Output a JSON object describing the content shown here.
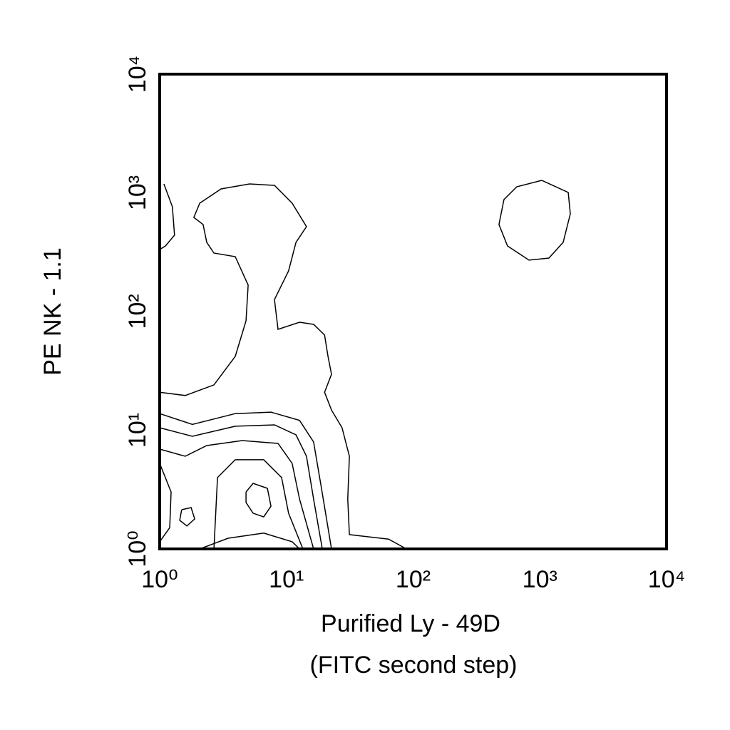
{
  "chart_data": {
    "type": "contour",
    "xlabel": [
      "Purified Ly - 49D",
      "(FITC second step)"
    ],
    "ylabel": "PE NK - 1.1",
    "xscale": "log",
    "yscale": "log",
    "xlim": [
      1,
      10000
    ],
    "ylim": [
      1,
      10000
    ],
    "xticks": [
      {
        "value": 1,
        "label": "10⁰"
      },
      {
        "value": 10,
        "label": "10¹"
      },
      {
        "value": 100,
        "label": "10²"
      },
      {
        "value": 1000,
        "label": "10³"
      },
      {
        "value": 10000,
        "label": "10⁴"
      }
    ],
    "yticks": [
      {
        "value": 1,
        "label": "10⁰"
      },
      {
        "value": 10,
        "label": "10¹"
      },
      {
        "value": 100,
        "label": "10²"
      },
      {
        "value": 1000,
        "label": "10³"
      },
      {
        "value": 10000,
        "label": "10⁴"
      }
    ],
    "color": "#000000",
    "series": [
      {
        "x": [
          1036,
          1675,
          1740,
          1528,
          1180,
          821,
          556,
          476,
          521,
          658,
          1036
        ],
        "y": [
          1274,
          1007,
          665,
          383,
          282,
          271,
          357,
          541,
          877,
          1125,
          1274
        ]
      },
      {
        "x": [
          1,
          1.59,
          2.68,
          3.95,
          4.8,
          4.99,
          3.95,
          2.68,
          2.35,
          2.2,
          1.86,
          2.07,
          3.05,
          5.12,
          8.05,
          11.1,
          14.4,
          11.9,
          10.4,
          8.05,
          8.59,
          12.7,
          16.4,
          20,
          21.3,
          22.7,
          20,
          22.7,
          27.5,
          31.4,
          30.5,
          31.4,
          64,
          88.5
        ],
        "y": [
          20.9,
          19.6,
          24.1,
          41.9,
          83.5,
          167,
          290,
          311,
          383,
          541,
          621,
          818,
          1079,
          1189,
          1156,
          818,
          519,
          383,
          220,
          126,
          70.8,
          81.3,
          78,
          63.4,
          41.9,
          29.6,
          20.9,
          14.8,
          10.5,
          6.04,
          2.63,
          1.32,
          1.21,
          1
        ]
      },
      {
        "x": [
          1.08,
          1.26,
          1.31,
          1.11,
          1
        ],
        "y": [
          1189,
          764,
          440,
          357,
          333
        ]
      },
      {
        "x": [
          1,
          1.81,
          3.95,
          7.55,
          12.7,
          16.4,
          18.7,
          21.3,
          22.7
        ],
        "y": [
          13.8,
          11.2,
          13.8,
          14.2,
          12.1,
          7.96,
          3.47,
          1.51,
          1
        ]
      },
      {
        "x": [
          1,
          1.81,
          3.95,
          8.05,
          11.9,
          14.4,
          16.4,
          19.2
        ],
        "y": [
          10.5,
          8.89,
          10.8,
          11.1,
          9.14,
          6.04,
          2.63,
          1
        ]
      },
      {
        "x": [
          1,
          1.59,
          2.35,
          4.49,
          8.59,
          11.1,
          12.7,
          16.4
        ],
        "y": [
          6.93,
          6.04,
          7.43,
          8.18,
          7.74,
          5.26,
          2.63,
          1
        ]
      },
      {
        "x": [
          2.68,
          2.86,
          3.95,
          6.62,
          9.16,
          10.4,
          13.5
        ],
        "y": [
          1,
          3.99,
          5.64,
          5.64,
          3.99,
          2,
          1
        ]
      },
      {
        "x": [
          4.8,
          5.46,
          7.08,
          7.55,
          6.62,
          5.46,
          4.8,
          4.8
        ],
        "y": [
          3.02,
          3.57,
          3.24,
          2.29,
          1.86,
          2,
          2.46,
          3.02
        ]
      },
      {
        "x": [
          1.49,
          1.77,
          1.89,
          1.64,
          1.44,
          1.49
        ],
        "y": [
          2.14,
          2.23,
          1.79,
          1.56,
          1.74,
          2.14
        ]
      },
      {
        "x": [
          1,
          1.23,
          1.2,
          1
        ],
        "y": [
          5.26,
          3.02,
          1.51,
          1.15
        ]
      },
      {
        "x": [
          2.07,
          3.47,
          6.62,
          11.1,
          12.7
        ],
        "y": [
          1,
          1.23,
          1.36,
          1.15,
          1
        ]
      }
    ]
  }
}
